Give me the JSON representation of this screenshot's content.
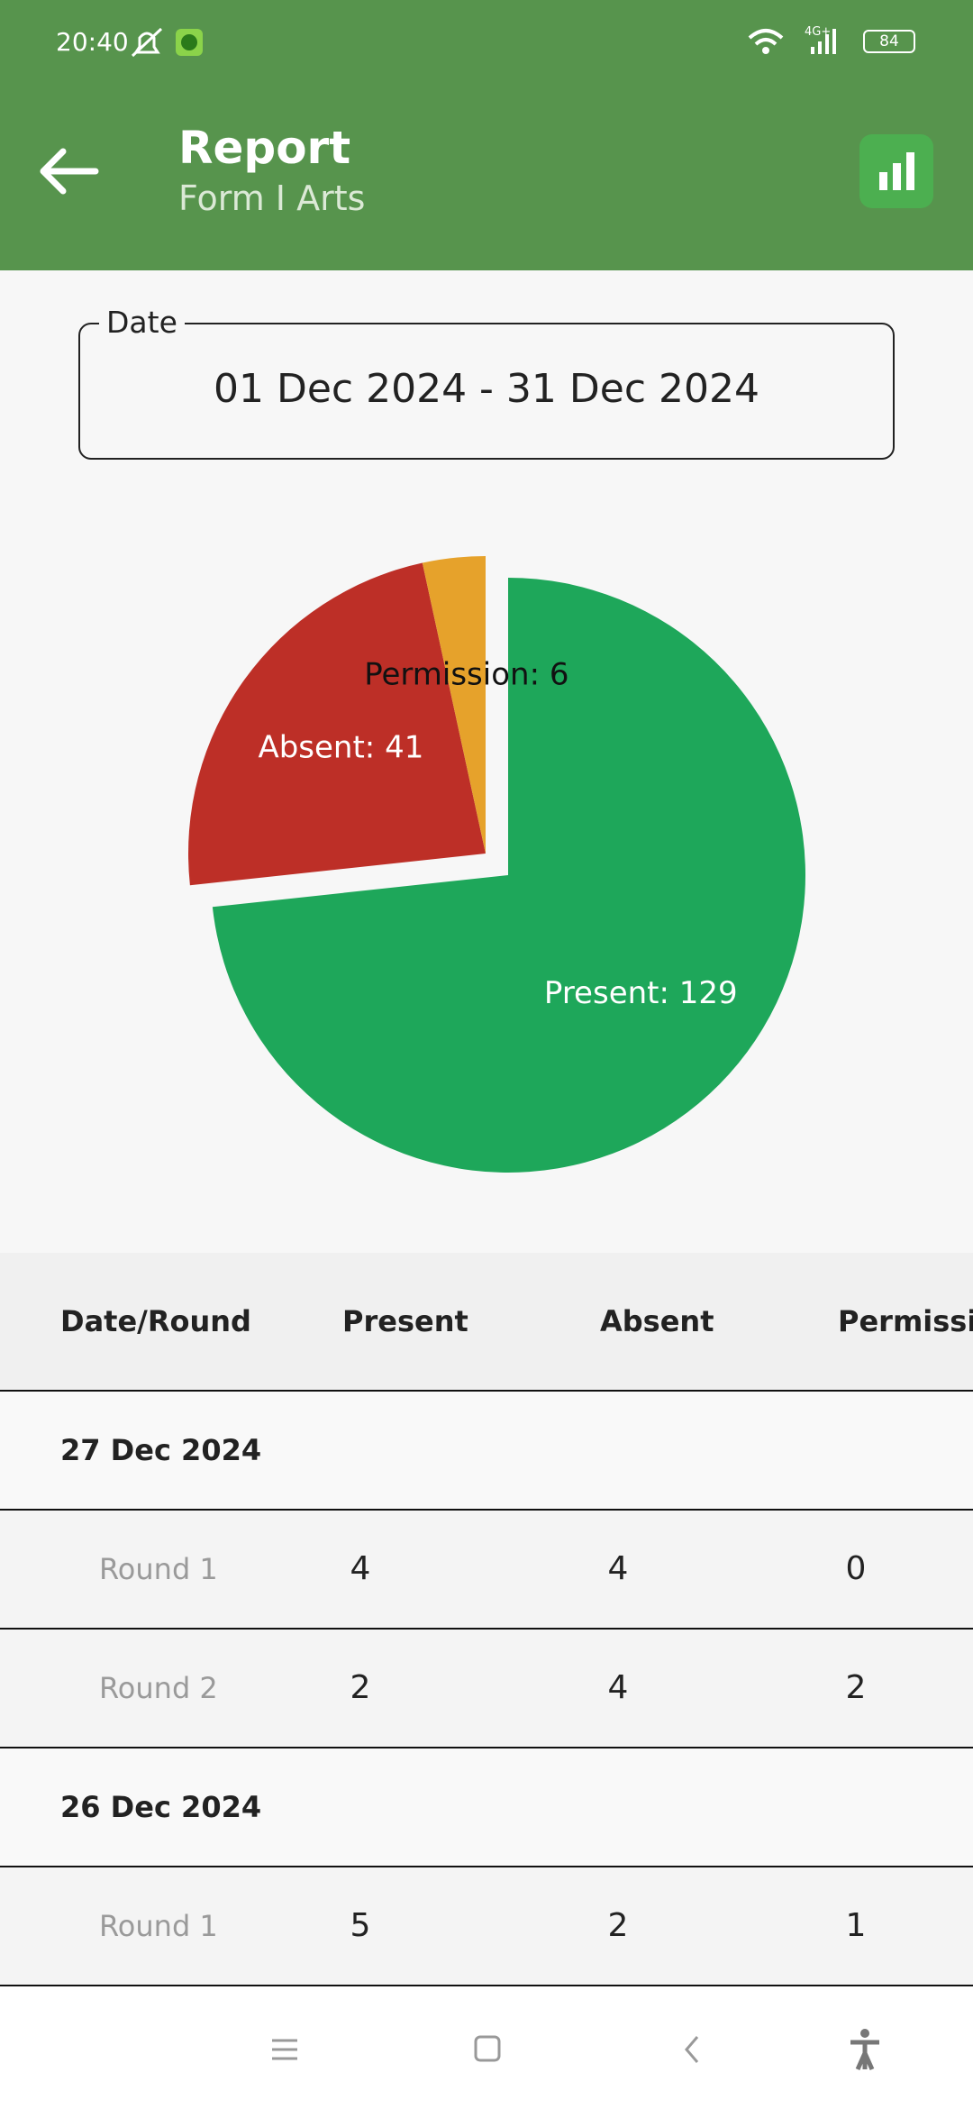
{
  "status_bar": {
    "time": "20:40",
    "network": "4G+",
    "battery": "84"
  },
  "header": {
    "title": "Report",
    "subtitle": "Form I Arts"
  },
  "date_field": {
    "label": "Date",
    "value": "01 Dec 2024 - 31 Dec 2024"
  },
  "chart_data": {
    "type": "pie",
    "values": [
      129,
      41,
      6
    ],
    "value_labels": [
      "Present: 129",
      "Absent: 41",
      "Permission: 6"
    ],
    "colors": [
      "#1ea75a",
      "#bd2f27",
      "#e6a22b"
    ]
  },
  "table": {
    "columns": [
      "Date/Round",
      "Present",
      "Absent",
      "Permission"
    ],
    "groups": [
      {
        "date": "27 Dec 2024",
        "rows": [
          [
            "Round 1",
            "4",
            "4",
            "0"
          ],
          [
            "Round 2",
            "2",
            "4",
            "2"
          ]
        ]
      },
      {
        "date": "26 Dec 2024",
        "rows": [
          [
            "Round 1",
            "5",
            "2",
            "1"
          ]
        ]
      }
    ]
  }
}
